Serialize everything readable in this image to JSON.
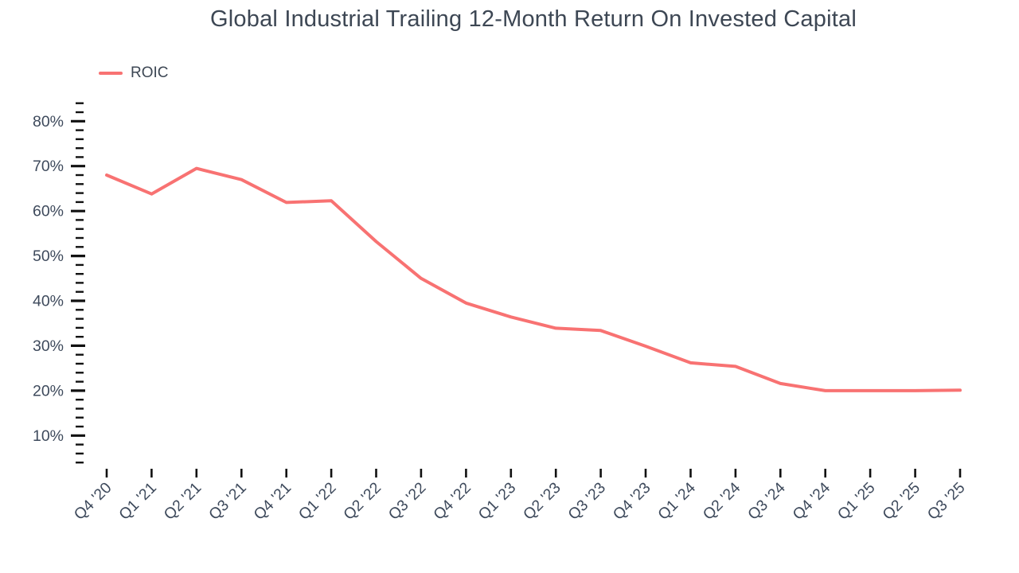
{
  "title": "Global Industrial Trailing 12-Month Return On Invested Capital",
  "legend": {
    "label": "ROIC"
  },
  "colors": {
    "accent": "#f87272",
    "text": "#3d4754",
    "tick": "#111111",
    "background": "#ffffff"
  },
  "chart_data": {
    "type": "line",
    "title": "Global Industrial Trailing 12-Month Return On Invested Capital",
    "categories": [
      "Q4 '20",
      "Q1 '21",
      "Q2 '21",
      "Q3 '21",
      "Q4 '21",
      "Q1 '22",
      "Q2 '22",
      "Q3 '22",
      "Q4 '22",
      "Q1 '23",
      "Q2 '23",
      "Q3 '23",
      "Q4 '23",
      "Q1 '24",
      "Q2 '24",
      "Q3 '24",
      "Q4 '24",
      "Q1 '25",
      "Q2 '25",
      "Q3 '25"
    ],
    "series": [
      {
        "name": "ROIC",
        "values": [
          68.0,
          63.8,
          69.5,
          67.0,
          61.9,
          62.3,
          53.2,
          45.0,
          39.5,
          36.4,
          33.9,
          33.4,
          29.9,
          26.2,
          25.4,
          21.6,
          20.0,
          20.0,
          20.0,
          20.1
        ]
      }
    ],
    "xlabel": "",
    "ylabel": "",
    "ylim": [
      0,
      85
    ],
    "y_ticks": [
      {
        "v": 10,
        "label": "10%"
      },
      {
        "v": 20,
        "label": "20%"
      },
      {
        "v": 30,
        "label": "30%"
      },
      {
        "v": 40,
        "label": "40%"
      },
      {
        "v": 50,
        "label": "50%"
      },
      {
        "v": 60,
        "label": "60%"
      },
      {
        "v": 70,
        "label": "70%"
      },
      {
        "v": 80,
        "label": "80%"
      }
    ],
    "y_minor_tick_range": [
      4,
      84
    ],
    "y_minor_tick_step": 2,
    "grid": false,
    "legend_position": "top-left",
    "line_width": 4,
    "markers": false
  }
}
